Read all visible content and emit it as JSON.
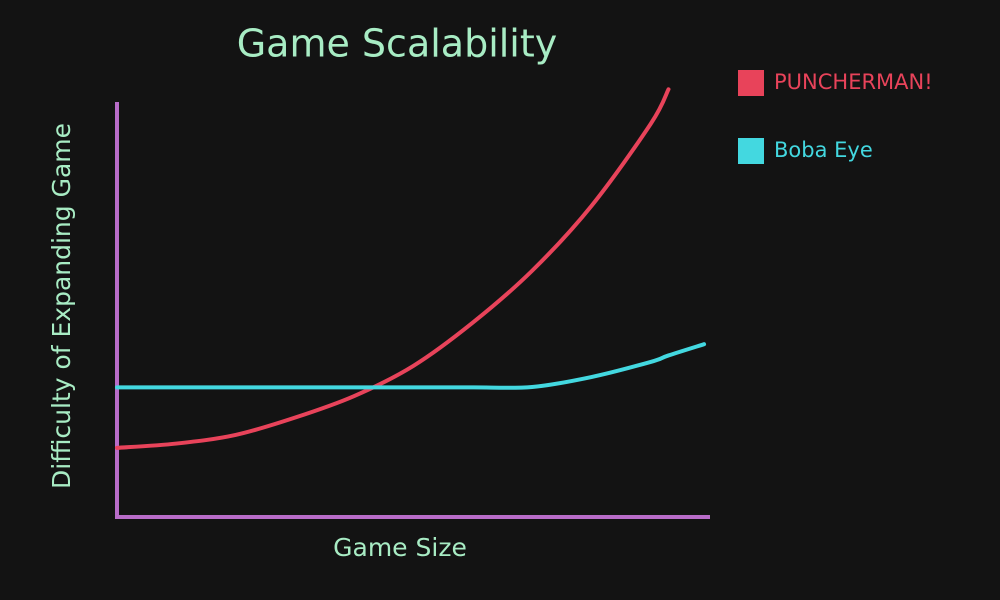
{
  "chart_data": {
    "type": "line",
    "title": "Game Scalability",
    "x_label": "Game Size",
    "y_label": "Difficulty of Expanding Game",
    "x": [
      0,
      10,
      20,
      30,
      40,
      50,
      60,
      70,
      80,
      90,
      93,
      99
    ],
    "xlim": [
      0,
      100
    ],
    "ylim": [
      0,
      100
    ],
    "legend": "right",
    "series": [
      {
        "name": "PUNCHERMAN!",
        "color": "#e8435a",
        "values": [
          16,
          17,
          19,
          23,
          28,
          35,
          45,
          57,
          72,
          91,
          99,
          null
        ]
      },
      {
        "name": "Boba Eye",
        "color": "#43d8e0",
        "values": [
          30,
          30,
          30,
          30,
          30,
          30,
          30,
          30.1,
          32.4,
          35.9,
          37.4,
          40
        ]
      }
    ]
  }
}
